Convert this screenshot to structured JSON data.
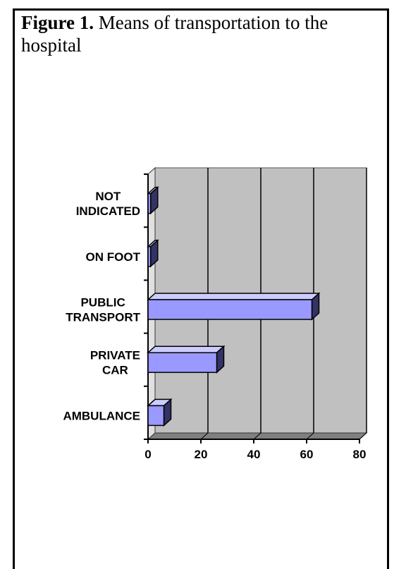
{
  "figure": {
    "label": "Figure 1.",
    "title": "Means of transportation to the hospital"
  },
  "chart_data": {
    "type": "bar",
    "orientation": "horizontal",
    "style": "3d",
    "categories": [
      [
        "AMBULANCE"
      ],
      [
        "PRIVATE",
        "CAR"
      ],
      [
        "PUBLIC",
        "TRANSPORT"
      ],
      [
        "ON FOOT"
      ],
      [
        "NOT",
        "INDICATED"
      ]
    ],
    "values": [
      6,
      26,
      62,
      1,
      1
    ],
    "xlim": [
      0,
      80
    ],
    "xticks": [
      0,
      20,
      40,
      60,
      80
    ],
    "grid": "vertical",
    "legend": "none",
    "colors": {
      "bar_front": "#9999ff",
      "bar_top": "#ccccff",
      "bar_side": "#333366",
      "plot_back": "#c0c0c0",
      "plot_floor": "#808080",
      "grid": "#000000"
    }
  }
}
